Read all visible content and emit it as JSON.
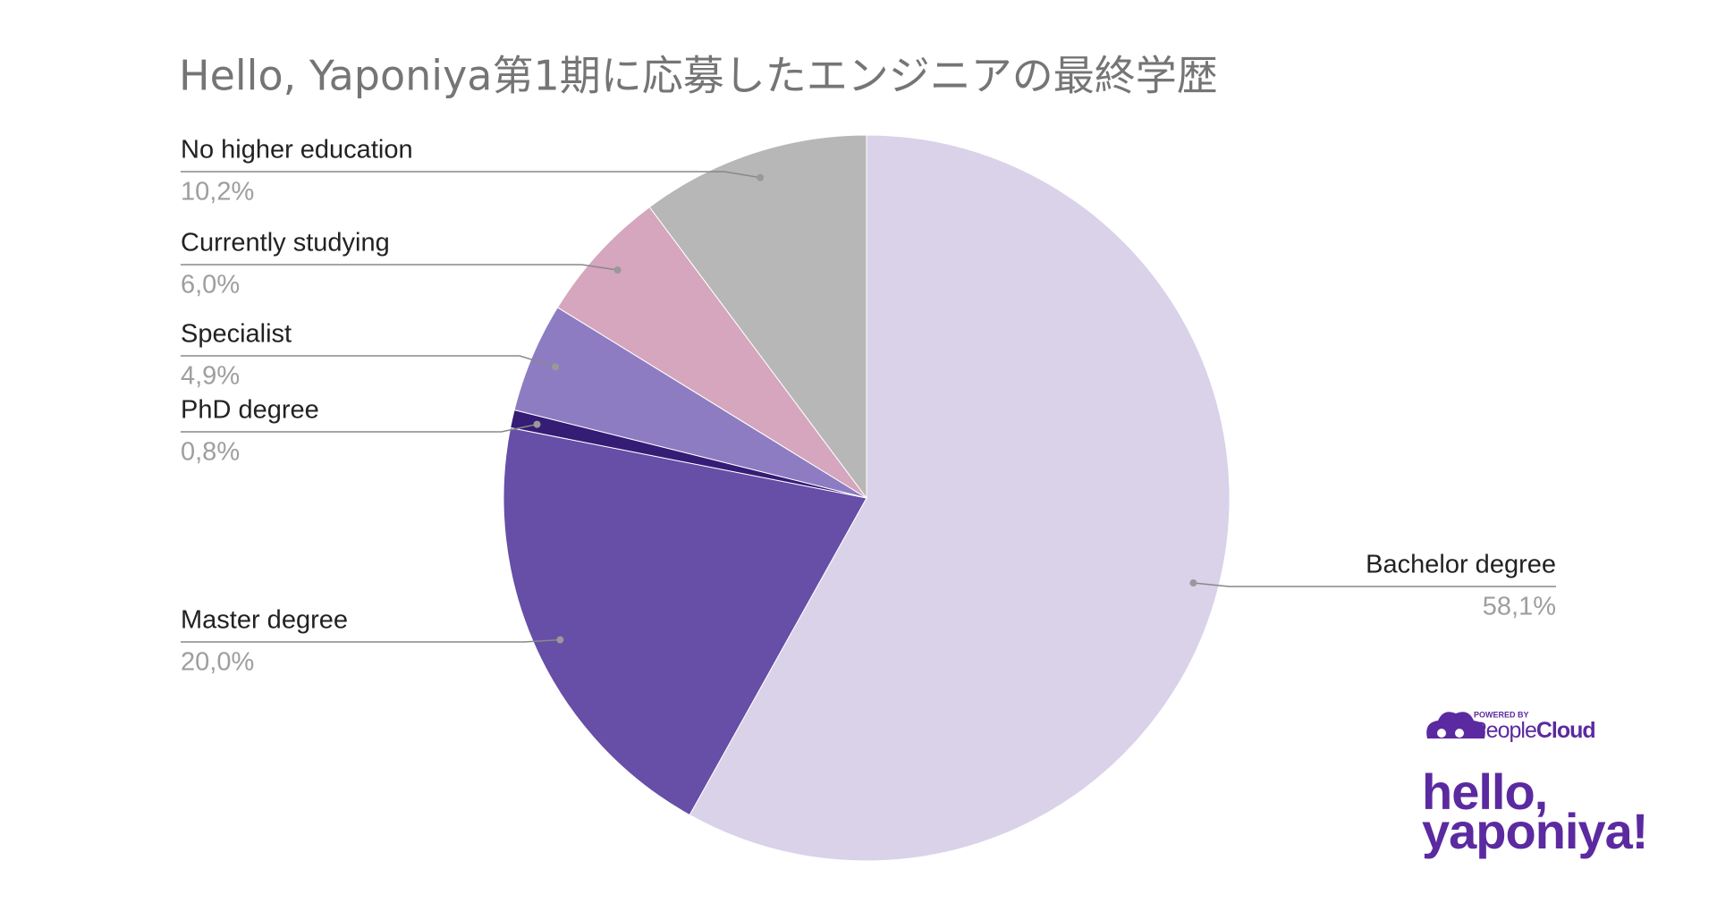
{
  "chart_data": {
    "type": "pie",
    "title": "Hello, Yaponiya第1期に応募したエンジニアの最終学歴",
    "categories": [
      "Bachelor degree",
      "Master degree",
      "PhD degree",
      "Specialist",
      "Currently studying",
      "No higher education"
    ],
    "values": [
      58.1,
      20.0,
      0.8,
      4.9,
      6.0,
      10.2
    ],
    "value_labels": [
      "58,1%",
      "20,0%",
      "0,8%",
      "4,9%",
      "6,0%",
      "10,2%"
    ],
    "colors": [
      "#d9d2e9",
      "#674ea7",
      "#351c75",
      "#8e7cc3",
      "#d5a6bd",
      "#b7b7b7"
    ],
    "annotations": [
      "POWERED BY",
      "People",
      "Cloud",
      "hello,",
      "yaponiya!"
    ]
  }
}
